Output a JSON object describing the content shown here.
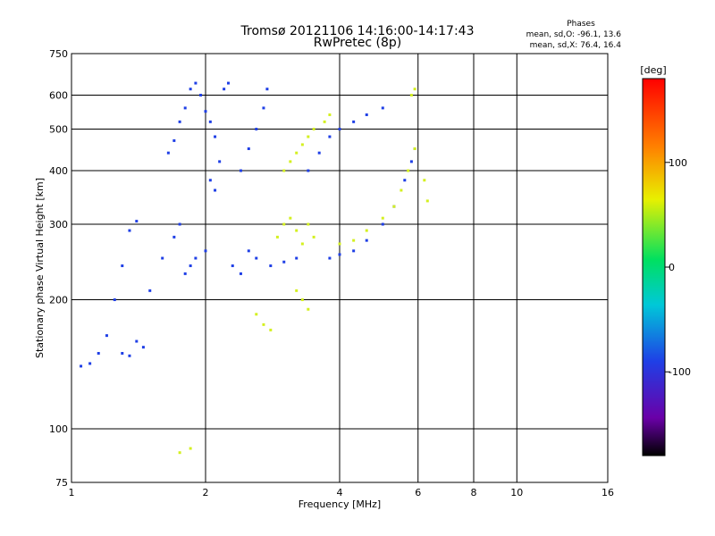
{
  "header": {
    "title_line1": "Tromsø 20121106 14:16:00-14:17:43",
    "title_line2": "RwPretec (8p)",
    "phase_title": "Phases",
    "phase_o": "mean, sd,O: -96.1, 13.6",
    "phase_x": "mean, sd,X:  76.4, 16.4"
  },
  "colorbar": {
    "unit": "[deg]",
    "ticks": [
      {
        "value": 100,
        "label": "100"
      },
      {
        "value": 0,
        "label": "0"
      },
      {
        "value": -100,
        "label": "-100"
      }
    ],
    "range": [
      -180,
      180
    ],
    "scale": "rainbow"
  },
  "chart_data": {
    "type": "scatter",
    "xlabel": "Frequency [MHz]",
    "ylabel": "Stationary phase Virtual Height [km]",
    "xscale": "log",
    "yscale": "log",
    "xlim": [
      1,
      16
    ],
    "ylim": [
      75,
      750
    ],
    "xticks": [
      1,
      2,
      4,
      6,
      8,
      10,
      16
    ],
    "yticks": [
      75,
      100,
      200,
      300,
      400,
      500,
      600,
      750
    ],
    "grid_x": [
      2,
      4,
      6,
      8,
      10
    ],
    "grid_y": [
      100,
      200,
      300,
      400,
      500,
      600
    ],
    "series": [
      {
        "mode": "O",
        "phase_mean_deg": -96.1,
        "color": "#1f3fe6",
        "points": [
          [
            1.05,
            140
          ],
          [
            1.1,
            142
          ],
          [
            1.15,
            150
          ],
          [
            1.2,
            165
          ],
          [
            1.25,
            200
          ],
          [
            1.3,
            240
          ],
          [
            1.35,
            290
          ],
          [
            1.4,
            305
          ],
          [
            1.3,
            150
          ],
          [
            1.35,
            148
          ],
          [
            1.4,
            160
          ],
          [
            1.45,
            155
          ],
          [
            1.5,
            210
          ],
          [
            1.6,
            250
          ],
          [
            1.7,
            280
          ],
          [
            1.75,
            300
          ],
          [
            1.8,
            230
          ],
          [
            1.85,
            240
          ],
          [
            1.9,
            250
          ],
          [
            2.0,
            260
          ],
          [
            1.65,
            440
          ],
          [
            1.7,
            470
          ],
          [
            1.75,
            520
          ],
          [
            1.8,
            560
          ],
          [
            1.85,
            620
          ],
          [
            1.9,
            640
          ],
          [
            1.95,
            600
          ],
          [
            2.0,
            550
          ],
          [
            2.05,
            520
          ],
          [
            2.1,
            480
          ],
          [
            2.15,
            420
          ],
          [
            2.05,
            380
          ],
          [
            2.1,
            360
          ],
          [
            2.2,
            620
          ],
          [
            2.25,
            640
          ],
          [
            2.4,
            400
          ],
          [
            2.5,
            450
          ],
          [
            2.6,
            500
          ],
          [
            2.7,
            560
          ],
          [
            2.75,
            620
          ],
          [
            2.3,
            240
          ],
          [
            2.4,
            230
          ],
          [
            2.5,
            260
          ],
          [
            2.6,
            250
          ],
          [
            2.8,
            240
          ],
          [
            3.0,
            245
          ],
          [
            3.2,
            250
          ],
          [
            3.4,
            400
          ],
          [
            3.6,
            440
          ],
          [
            3.8,
            480
          ],
          [
            4.0,
            500
          ],
          [
            4.3,
            520
          ],
          [
            4.6,
            540
          ],
          [
            5.0,
            560
          ],
          [
            3.8,
            250
          ],
          [
            4.0,
            255
          ],
          [
            4.3,
            260
          ],
          [
            4.6,
            275
          ],
          [
            5.0,
            300
          ],
          [
            5.3,
            330
          ],
          [
            5.6,
            380
          ],
          [
            5.8,
            420
          ],
          [
            5.9,
            450
          ]
        ]
      },
      {
        "mode": "X",
        "phase_mean_deg": 76.4,
        "color": "#d4f020",
        "points": [
          [
            1.75,
            88
          ],
          [
            1.85,
            90
          ],
          [
            2.6,
            185
          ],
          [
            2.7,
            175
          ],
          [
            2.8,
            170
          ],
          [
            2.9,
            280
          ],
          [
            3.0,
            300
          ],
          [
            3.1,
            310
          ],
          [
            3.2,
            290
          ],
          [
            3.3,
            270
          ],
          [
            3.4,
            300
          ],
          [
            3.5,
            280
          ],
          [
            3.0,
            400
          ],
          [
            3.1,
            420
          ],
          [
            3.2,
            440
          ],
          [
            3.3,
            460
          ],
          [
            3.4,
            480
          ],
          [
            3.5,
            500
          ],
          [
            3.3,
            200
          ],
          [
            3.4,
            190
          ],
          [
            3.2,
            210
          ],
          [
            3.7,
            520
          ],
          [
            3.8,
            540
          ],
          [
            4.0,
            270
          ],
          [
            4.3,
            275
          ],
          [
            4.6,
            290
          ],
          [
            5.0,
            310
          ],
          [
            5.3,
            330
          ],
          [
            5.5,
            360
          ],
          [
            5.7,
            400
          ],
          [
            5.9,
            450
          ],
          [
            5.8,
            600
          ],
          [
            5.9,
            620
          ],
          [
            6.2,
            380
          ],
          [
            6.3,
            340
          ]
        ]
      }
    ]
  }
}
